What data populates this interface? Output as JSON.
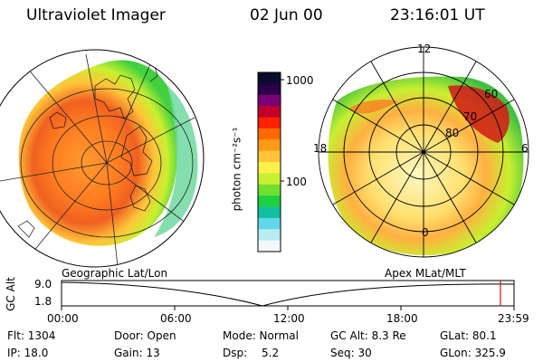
{
  "header": {
    "instrument": "Ultraviolet Imager",
    "date": "02 Jun 00",
    "time": "23:16:01 UT"
  },
  "left_panel": {
    "label": "Geographic Lat/Lon"
  },
  "right_panel": {
    "label": "Apex MLat/MLT",
    "mlt_labels": [
      "12",
      "18",
      "6",
      "0"
    ],
    "lat_labels": [
      "60",
      "70",
      "80"
    ]
  },
  "colorbar": {
    "label": "photon cm⁻²s⁻¹",
    "ticks": [
      "1000",
      "100"
    ],
    "colors": [
      "#0b0b2e",
      "#2a0048",
      "#7a0078",
      "#c0002a",
      "#ff2000",
      "#ff6a00",
      "#ff9a18",
      "#ffc43a",
      "#fff04a",
      "#c8f030",
      "#70e030",
      "#20d040",
      "#10c0a0",
      "#60d8e8",
      "#b8ecf4",
      "#f4f8fa"
    ]
  },
  "timeline": {
    "axis_label": "GC Alt",
    "y_ticks": [
      "9.0",
      "1.8"
    ],
    "x_ticks": [
      "00:00",
      "06:00",
      "12:00",
      "18:00",
      "23:59"
    ],
    "marker_color": "#d02020"
  },
  "info": {
    "flt": "Flt: 1304",
    "door": "Door: Open",
    "mode": "Mode: Normal",
    "gc_alt": "GC Alt: 8.3 Re",
    "glat": "GLat: 80.1",
    "ip": "IP: 18.0",
    "gain": "Gain: 13",
    "dsp_label": "Dsp:",
    "dsp_value": "5.2",
    "seq": "Seq: 30",
    "glon": "GLon: 325.9"
  }
}
